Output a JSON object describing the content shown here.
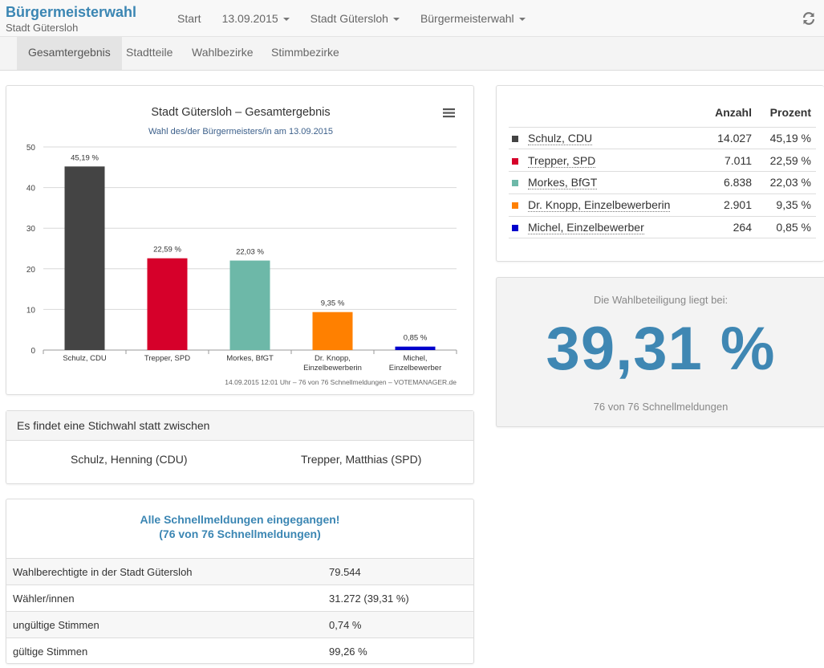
{
  "app": {
    "title": "Bürgermeisterwahl",
    "subtitle": "Stadt Gütersloh"
  },
  "nav": {
    "start": "Start",
    "date": "13.09.2015",
    "city": "Stadt Gütersloh",
    "election": "Bürgermeisterwahl"
  },
  "tabs": [
    "Gesamtergebnis",
    "Stadtteile",
    "Wahlbezirke",
    "Stimmbezirke"
  ],
  "icons": {
    "refresh": "refresh-icon",
    "menu": "hamburger-menu-icon"
  },
  "chart_data": {
    "type": "bar",
    "title": "Stadt Gütersloh – Gesamtergebnis",
    "subtitle": "Wahl des/der Bürgermeisters/in am 13.09.2015",
    "categories": [
      [
        "Schulz, CDU"
      ],
      [
        "Trepper, SPD"
      ],
      [
        "Morkes, BfGT"
      ],
      [
        "Dr. Knopp,",
        "Einzelbewerberin"
      ],
      [
        "Michel,",
        "Einzelbewerber"
      ]
    ],
    "values": [
      45.19,
      22.59,
      22.03,
      9.35,
      0.85
    ],
    "data_labels": [
      "45,19 %",
      "22,59 %",
      "22,03 %",
      "9,35 %",
      "0,85 %"
    ],
    "colors": [
      "#444444",
      "#d6002a",
      "#6db8a8",
      "#ff8000",
      "#0000cc"
    ],
    "ylim": [
      0,
      50
    ],
    "yticks": [
      "0",
      "10",
      "20",
      "30",
      "40",
      "50"
    ],
    "grid": true,
    "credits": "14.09.2015 12:01 Uhr – 76 von 76 Schnellmeldungen – VOTEMANAGER.de"
  },
  "results": {
    "headers": [
      "Anzahl",
      "Prozent"
    ],
    "rows": [
      {
        "name": "Schulz, CDU",
        "count": "14.027",
        "percent": "45,19 %",
        "color": "#444444"
      },
      {
        "name": "Trepper, SPD",
        "count": "7.011",
        "percent": "22,59 %",
        "color": "#d6002a"
      },
      {
        "name": "Morkes, BfGT",
        "count": "6.838",
        "percent": "22,03 %",
        "color": "#6db8a8"
      },
      {
        "name": "Dr. Knopp, Einzelbewerberin",
        "count": "2.901",
        "percent": "9,35 %",
        "color": "#ff8000"
      },
      {
        "name": "Michel, Einzelbewerber",
        "count": "264",
        "percent": "0,85 %",
        "color": "#0000cc"
      }
    ]
  },
  "turnout": {
    "label": "Die Wahlbeteiligung liegt bei:",
    "value": "39,31 %",
    "note": "76 von 76 Schnellmeldungen"
  },
  "runoff": {
    "heading": "Es findet eine Stichwahl statt zwischen",
    "candidate1": "Schulz, Henning (CDU)",
    "candidate2": "Trepper, Matthias (SPD)"
  },
  "report": {
    "line1": "Alle Schnellmeldungen eingegangen!",
    "line2": "(76 von 76 Schnellmeldungen)",
    "rows": [
      {
        "label": "Wahlberechtigte in der Stadt Gütersloh",
        "value": "79.544"
      },
      {
        "label": "Wähler/innen",
        "value": "31.272 (39,31 %)"
      },
      {
        "label": "ungültige Stimmen",
        "value": "0,74 %"
      },
      {
        "label": "gültige Stimmen",
        "value": "99,26 %"
      }
    ]
  }
}
